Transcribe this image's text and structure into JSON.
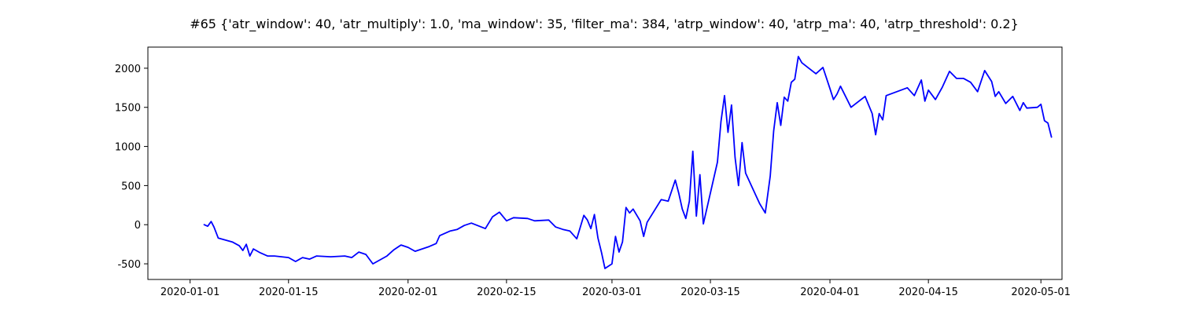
{
  "chart_data": {
    "type": "line",
    "title": "#65 {'atr_window': 40, 'atr_multiply': 1.0, 'ma_window': 35, 'filter_ma': 384, 'atrp_window': 40, 'atrp_ma': 40, 'atrp_threshold': 0.2}",
    "xlabel": "",
    "ylabel": "",
    "x_ticks": [
      "2020-01-01",
      "2020-01-15",
      "2020-02-01",
      "2020-02-15",
      "2020-03-01",
      "2020-03-15",
      "2020-04-01",
      "2020-04-15",
      "2020-05-01"
    ],
    "y_ticks": [
      -500,
      0,
      500,
      1000,
      1500,
      2000
    ],
    "xlim": [
      "2019-12-26",
      "2020-05-04"
    ],
    "ylim": [
      -700,
      2270
    ],
    "grid": false,
    "series": [
      {
        "color": "#0000ff",
        "points": [
          [
            "2020-01-03",
            0
          ],
          [
            "2020-01-03.5",
            -20
          ],
          [
            "2020-01-04",
            40
          ],
          [
            "2020-01-04.4",
            -30
          ],
          [
            "2020-01-05",
            -170
          ],
          [
            "2020-01-07",
            -220
          ],
          [
            "2020-01-08",
            -270
          ],
          [
            "2020-01-08.5",
            -330
          ],
          [
            "2020-01-09",
            -250
          ],
          [
            "2020-01-09.5",
            -400
          ],
          [
            "2020-01-10",
            -310
          ],
          [
            "2020-01-11",
            -360
          ],
          [
            "2020-01-12",
            -400
          ],
          [
            "2020-01-13",
            -400
          ],
          [
            "2020-01-15",
            -420
          ],
          [
            "2020-01-16",
            -470
          ],
          [
            "2020-01-17",
            -420
          ],
          [
            "2020-01-18",
            -440
          ],
          [
            "2020-01-19",
            -400
          ],
          [
            "2020-01-21",
            -410
          ],
          [
            "2020-01-23",
            -400
          ],
          [
            "2020-01-24",
            -420
          ],
          [
            "2020-01-25",
            -350
          ],
          [
            "2020-01-26",
            -380
          ],
          [
            "2020-01-27",
            -500
          ],
          [
            "2020-01-29",
            -400
          ],
          [
            "2020-01-30",
            -320
          ],
          [
            "2020-01-31",
            -260
          ],
          [
            "2020-02-01",
            -290
          ],
          [
            "2020-02-02",
            -340
          ],
          [
            "2020-02-04",
            -280
          ],
          [
            "2020-02-05",
            -240
          ],
          [
            "2020-02-05.5",
            -140
          ],
          [
            "2020-02-06",
            -120
          ],
          [
            "2020-02-07",
            -80
          ],
          [
            "2020-02-08",
            -60
          ],
          [
            "2020-02-09",
            -10
          ],
          [
            "2020-02-10",
            20
          ],
          [
            "2020-02-12",
            -50
          ],
          [
            "2020-02-13",
            100
          ],
          [
            "2020-02-14",
            160
          ],
          [
            "2020-02-15",
            50
          ],
          [
            "2020-02-16",
            90
          ],
          [
            "2020-02-18",
            80
          ],
          [
            "2020-02-19",
            50
          ],
          [
            "2020-02-21",
            60
          ],
          [
            "2020-02-22",
            -30
          ],
          [
            "2020-02-23",
            -60
          ],
          [
            "2020-02-24",
            -80
          ],
          [
            "2020-02-25",
            -180
          ],
          [
            "2020-02-26",
            120
          ],
          [
            "2020-02-26.5",
            60
          ],
          [
            "2020-02-27",
            -50
          ],
          [
            "2020-02-27.5",
            130
          ],
          [
            "2020-02-28",
            -170
          ],
          [
            "2020-02-28.5",
            -350
          ],
          [
            "2020-02-29",
            -560
          ],
          [
            "2020-03-01",
            -500
          ],
          [
            "2020-03-01.5",
            -150
          ],
          [
            "2020-03-02",
            -350
          ],
          [
            "2020-03-02.5",
            -220
          ],
          [
            "2020-03-03",
            220
          ],
          [
            "2020-03-03.5",
            150
          ],
          [
            "2020-03-04",
            200
          ],
          [
            "2020-03-05",
            50
          ],
          [
            "2020-03-05.5",
            -150
          ],
          [
            "2020-03-06",
            30
          ],
          [
            "2020-03-08",
            320
          ],
          [
            "2020-03-09",
            300
          ],
          [
            "2020-03-10",
            570
          ],
          [
            "2020-03-10.5",
            400
          ],
          [
            "2020-03-11",
            200
          ],
          [
            "2020-03-11.5",
            80
          ],
          [
            "2020-03-12",
            300
          ],
          [
            "2020-03-12.5",
            940
          ],
          [
            "2020-03-13",
            110
          ],
          [
            "2020-03-13.5",
            640
          ],
          [
            "2020-03-14",
            10
          ],
          [
            "2020-03-16",
            800
          ],
          [
            "2020-03-16.5",
            1320
          ],
          [
            "2020-03-17",
            1650
          ],
          [
            "2020-03-17.5",
            1180
          ],
          [
            "2020-03-18",
            1530
          ],
          [
            "2020-03-18.5",
            860
          ],
          [
            "2020-03-19",
            500
          ],
          [
            "2020-03-19.5",
            1050
          ],
          [
            "2020-03-20",
            660
          ],
          [
            "2020-03-22",
            270
          ],
          [
            "2020-03-22.8",
            150
          ],
          [
            "2020-03-23.5",
            620
          ],
          [
            "2020-03-24",
            1200
          ],
          [
            "2020-03-24.5",
            1560
          ],
          [
            "2020-03-25",
            1270
          ],
          [
            "2020-03-25.5",
            1630
          ],
          [
            "2020-03-26",
            1580
          ],
          [
            "2020-03-26.5",
            1820
          ],
          [
            "2020-03-27",
            1860
          ],
          [
            "2020-03-27.5",
            2150
          ],
          [
            "2020-03-28",
            2070
          ],
          [
            "2020-03-29",
            2000
          ],
          [
            "2020-03-30",
            1930
          ],
          [
            "2020-03-31",
            2010
          ],
          [
            "2020-04-01",
            1740
          ],
          [
            "2020-04-01.5",
            1600
          ],
          [
            "2020-04-02",
            1670
          ],
          [
            "2020-04-02.5",
            1770
          ],
          [
            "2020-04-03",
            1680
          ],
          [
            "2020-04-04",
            1500
          ],
          [
            "2020-04-06",
            1640
          ],
          [
            "2020-04-07",
            1420
          ],
          [
            "2020-04-07.5",
            1150
          ],
          [
            "2020-04-08",
            1420
          ],
          [
            "2020-04-08.5",
            1340
          ],
          [
            "2020-04-09",
            1650
          ],
          [
            "2020-04-12",
            1750
          ],
          [
            "2020-04-13",
            1650
          ],
          [
            "2020-04-14",
            1850
          ],
          [
            "2020-04-14.5",
            1580
          ],
          [
            "2020-04-15",
            1720
          ],
          [
            "2020-04-16",
            1600
          ],
          [
            "2020-04-17",
            1760
          ],
          [
            "2020-04-18",
            1960
          ],
          [
            "2020-04-19",
            1870
          ],
          [
            "2020-04-20",
            1870
          ],
          [
            "2020-04-21",
            1820
          ],
          [
            "2020-04-22",
            1700
          ],
          [
            "2020-04-23",
            1970
          ],
          [
            "2020-04-24",
            1830
          ],
          [
            "2020-04-24.5",
            1640
          ],
          [
            "2020-04-25",
            1700
          ],
          [
            "2020-04-26",
            1550
          ],
          [
            "2020-04-27",
            1640
          ],
          [
            "2020-04-28",
            1460
          ],
          [
            "2020-04-28.5",
            1560
          ],
          [
            "2020-04-29",
            1490
          ],
          [
            "2020-04-30.5",
            1500
          ],
          [
            "2020-05-01",
            1540
          ],
          [
            "2020-05-01.5",
            1330
          ],
          [
            "2020-05-02",
            1300
          ],
          [
            "2020-05-02.5",
            1120
          ]
        ]
      }
    ]
  }
}
